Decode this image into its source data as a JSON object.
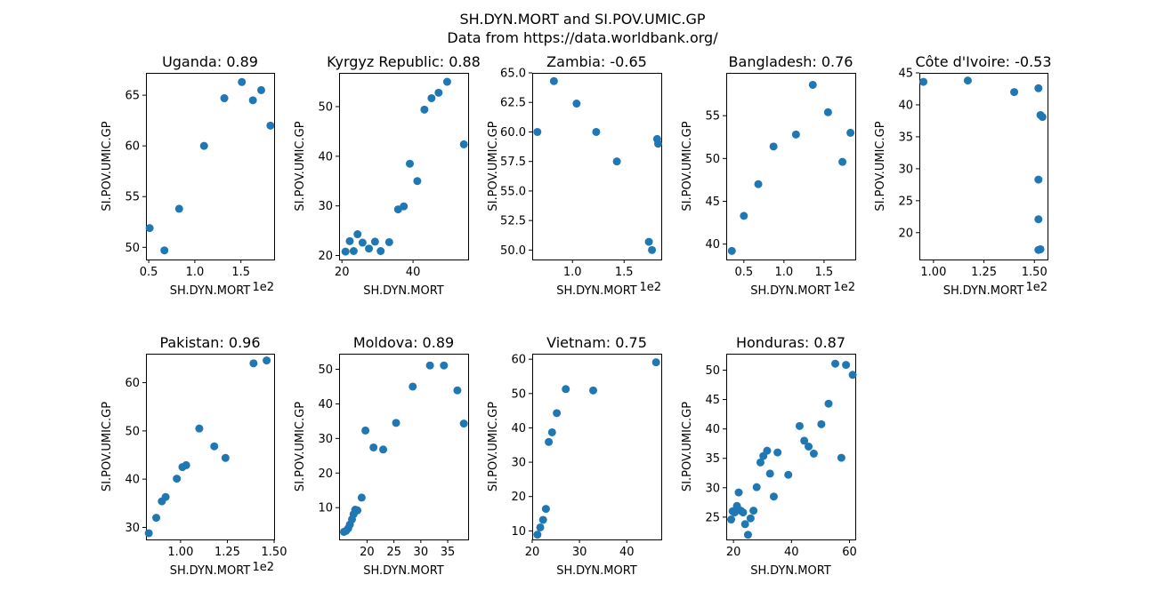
{
  "suptitle": {
    "line1": "SH.DYN.MORT and SI.POV.UMIC.GP",
    "line2": "Data from https://data.worldbank.org/"
  },
  "point_color": "#1f77b4",
  "chart_data": [
    {
      "type": "scatter",
      "title": "Uganda: 0.89",
      "xlabel": "SH.DYN.MORT",
      "ylabel": "SI.POV.UMIC.GP",
      "x_offset_label": "1e2",
      "xlim": [
        0.47,
        1.86
      ],
      "ylim": [
        48.8,
        67.2
      ],
      "xticks": [
        {
          "v": 0.5,
          "label": "0.5"
        },
        {
          "v": 1.0,
          "label": "1.0"
        },
        {
          "v": 1.5,
          "label": "1.5"
        }
      ],
      "yticks": [
        {
          "v": 50,
          "label": "50"
        },
        {
          "v": 55,
          "label": "55"
        },
        {
          "v": 60,
          "label": "60"
        },
        {
          "v": 65,
          "label": "65"
        }
      ],
      "x": [
        0.51,
        0.67,
        0.83,
        1.1,
        1.32,
        1.51,
        1.63,
        1.72,
        1.82
      ],
      "y": [
        51.9,
        49.7,
        53.8,
        60.0,
        64.7,
        66.3,
        64.5,
        65.5,
        62.0
      ]
    },
    {
      "type": "scatter",
      "title": "Kyrgyz Republic: 0.88",
      "xlabel": "SH.DYN.MORT",
      "ylabel": "SI.POV.UMIC.GP",
      "x_offset_label": "",
      "xlim": [
        19.2,
        55.5
      ],
      "ylim": [
        19.2,
        56.8
      ],
      "xticks": [
        {
          "v": 20,
          "label": "20"
        },
        {
          "v": 40,
          "label": "40"
        }
      ],
      "yticks": [
        {
          "v": 20,
          "label": "20"
        },
        {
          "v": 30,
          "label": "30"
        },
        {
          "v": 40,
          "label": "40"
        },
        {
          "v": 50,
          "label": "50"
        }
      ],
      "x": [
        21.0,
        22.2,
        23.3,
        24.4,
        25.8,
        27.6,
        29.3,
        30.9,
        33.3,
        35.8,
        37.4,
        39.1,
        41.2,
        43.2,
        45.2,
        47.2,
        49.6,
        54.3
      ],
      "y": [
        20.8,
        22.9,
        20.9,
        24.3,
        22.6,
        21.4,
        22.8,
        20.9,
        22.7,
        29.3,
        29.9,
        38.5,
        35.0,
        49.4,
        51.7,
        52.8,
        55.0,
        42.4
      ]
    },
    {
      "type": "scatter",
      "title": "Zambia: -0.65",
      "xlabel": "SH.DYN.MORT",
      "ylabel": "SI.POV.UMIC.GP",
      "x_offset_label": "1e2",
      "xlim": [
        0.61,
        1.86
      ],
      "ylim": [
        49.2,
        65.0
      ],
      "xticks": [
        {
          "v": 1.0,
          "label": "1.0"
        },
        {
          "v": 1.5,
          "label": "1.5"
        }
      ],
      "yticks": [
        {
          "v": 50.0,
          "label": "50.0"
        },
        {
          "v": 52.5,
          "label": "52.5"
        },
        {
          "v": 55.0,
          "label": "55.0"
        },
        {
          "v": 57.5,
          "label": "57.5"
        },
        {
          "v": 60.0,
          "label": "60.0"
        },
        {
          "v": 62.5,
          "label": "62.5"
        },
        {
          "v": 65.0,
          "label": "65.0"
        }
      ],
      "x": [
        0.66,
        0.82,
        1.04,
        1.23,
        1.43,
        1.74,
        1.77,
        1.82,
        1.83
      ],
      "y": [
        60.0,
        64.3,
        62.4,
        60.0,
        57.5,
        50.7,
        50.0,
        59.4,
        59.0
      ]
    },
    {
      "type": "scatter",
      "title": "Bangladesh: 0.76",
      "xlabel": "SH.DYN.MORT",
      "ylabel": "SI.POV.UMIC.GP",
      "x_offset_label": "1e2",
      "xlim": [
        0.28,
        1.89
      ],
      "ylim": [
        38.2,
        60.0
      ],
      "xticks": [
        {
          "v": 0.5,
          "label": "0.5"
        },
        {
          "v": 1.0,
          "label": "1.0"
        },
        {
          "v": 1.5,
          "label": "1.5"
        }
      ],
      "yticks": [
        {
          "v": 40,
          "label": "40"
        },
        {
          "v": 45,
          "label": "45"
        },
        {
          "v": 50,
          "label": "50"
        },
        {
          "v": 55,
          "label": "55"
        }
      ],
      "x": [
        0.35,
        0.5,
        0.68,
        0.87,
        1.15,
        1.36,
        1.55,
        1.73,
        1.83
      ],
      "y": [
        39.2,
        43.3,
        47.0,
        51.4,
        52.8,
        58.6,
        55.4,
        49.6,
        53.0
      ]
    },
    {
      "type": "scatter",
      "title": "Côte d'Ivoire: -0.53",
      "xlabel": "SH.DYN.MORT",
      "ylabel": "SI.POV.UMIC.GP",
      "x_offset_label": "1e2",
      "xlim": [
        0.93,
        1.565
      ],
      "ylim": [
        15.8,
        45.0
      ],
      "xticks": [
        {
          "v": 1.0,
          "label": "1.00"
        },
        {
          "v": 1.25,
          "label": "1.25"
        },
        {
          "v": 1.5,
          "label": "1.50"
        }
      ],
      "yticks": [
        {
          "v": 20,
          "label": "20"
        },
        {
          "v": 25,
          "label": "25"
        },
        {
          "v": 30,
          "label": "30"
        },
        {
          "v": 35,
          "label": "35"
        },
        {
          "v": 40,
          "label": "40"
        },
        {
          "v": 45,
          "label": "45"
        }
      ],
      "x": [
        0.95,
        1.17,
        1.4,
        1.52,
        1.52,
        1.52,
        1.52,
        1.53,
        1.53,
        1.54
      ],
      "y": [
        43.6,
        43.8,
        42.0,
        42.6,
        28.3,
        22.1,
        17.3,
        17.4,
        38.4,
        38.1
      ]
    },
    {
      "type": "scatter",
      "title": "Pakistan: 0.96",
      "xlabel": "SH.DYN.MORT",
      "ylabel": "SI.POV.UMIC.GP",
      "x_offset_label": "1e2",
      "xlim": [
        0.815,
        1.5
      ],
      "ylim": [
        27.5,
        66.0
      ],
      "xticks": [
        {
          "v": 1.0,
          "label": "1.00"
        },
        {
          "v": 1.25,
          "label": "1.25"
        },
        {
          "v": 1.5,
          "label": "1.50"
        }
      ],
      "yticks": [
        {
          "v": 30,
          "label": "30"
        },
        {
          "v": 40,
          "label": "40"
        },
        {
          "v": 50,
          "label": "50"
        },
        {
          "v": 60,
          "label": "60"
        }
      ],
      "x": [
        0.83,
        0.87,
        0.9,
        0.92,
        0.98,
        1.01,
        1.03,
        1.1,
        1.18,
        1.24,
        1.39,
        1.46
      ],
      "y": [
        28.8,
        32.0,
        35.4,
        36.3,
        40.1,
        42.5,
        42.9,
        50.5,
        46.8,
        44.4,
        64.0,
        64.6
      ]
    },
    {
      "type": "scatter",
      "title": "Moldova: 0.89",
      "xlabel": "SH.DYN.MORT",
      "ylabel": "SI.POV.UMIC.GP",
      "x_offset_label": "",
      "xlim": [
        14.8,
        38.8
      ],
      "ylim": [
        0.8,
        54.5
      ],
      "xticks": [
        {
          "v": 20,
          "label": "20"
        },
        {
          "v": 25,
          "label": "25"
        },
        {
          "v": 30,
          "label": "30"
        },
        {
          "v": 35,
          "label": "35"
        }
      ],
      "yticks": [
        {
          "v": 10,
          "label": "10"
        },
        {
          "v": 20,
          "label": "20"
        },
        {
          "v": 30,
          "label": "30"
        },
        {
          "v": 40,
          "label": "40"
        },
        {
          "v": 50,
          "label": "50"
        }
      ],
      "x": [
        15.7,
        16.1,
        16.5,
        16.8,
        17.2,
        17.5,
        17.8,
        18.2,
        19.0,
        19.7,
        21.2,
        23.0,
        25.4,
        28.5,
        31.7,
        34.3,
        36.8,
        38.0
      ],
      "y": [
        3.0,
        3.3,
        4.0,
        5.1,
        6.6,
        8.1,
        9.4,
        9.2,
        12.9,
        32.3,
        27.4,
        26.8,
        34.5,
        45.0,
        51.1,
        51.1,
        43.9,
        34.3
      ]
    },
    {
      "type": "scatter",
      "title": "Vietnam: 0.75",
      "xlabel": "SH.DYN.MORT",
      "ylabel": "SI.POV.UMIC.GP",
      "x_offset_label": "",
      "xlim": [
        20.0,
        47.3
      ],
      "ylim": [
        7.5,
        61.6
      ],
      "xticks": [
        {
          "v": 20,
          "label": "20"
        },
        {
          "v": 30,
          "label": "30"
        },
        {
          "v": 40,
          "label": "40"
        }
      ],
      "yticks": [
        {
          "v": 10,
          "label": "10"
        },
        {
          "v": 20,
          "label": "20"
        },
        {
          "v": 30,
          "label": "30"
        },
        {
          "v": 40,
          "label": "40"
        },
        {
          "v": 50,
          "label": "50"
        },
        {
          "v": 60,
          "label": "60"
        }
      ],
      "x": [
        21.1,
        21.7,
        22.3,
        22.9,
        23.5,
        24.2,
        25.2,
        27.1,
        32.9,
        46.2
      ],
      "y": [
        8.9,
        11.0,
        13.2,
        16.4,
        35.9,
        38.7,
        44.3,
        51.3,
        50.9,
        59.1
      ]
    },
    {
      "type": "scatter",
      "title": "Honduras: 0.87",
      "xlabel": "SH.DYN.MORT",
      "ylabel": "SI.POV.UMIC.GP",
      "x_offset_label": "",
      "xlim": [
        17.5,
        62.0
      ],
      "ylim": [
        21.2,
        52.8
      ],
      "xticks": [
        {
          "v": 20,
          "label": "20"
        },
        {
          "v": 40,
          "label": "40"
        },
        {
          "v": 60,
          "label": "60"
        }
      ],
      "yticks": [
        {
          "v": 25,
          "label": "25"
        },
        {
          "v": 30,
          "label": "30"
        },
        {
          "v": 35,
          "label": "35"
        },
        {
          "v": 40,
          "label": "40"
        },
        {
          "v": 45,
          "label": "45"
        },
        {
          "v": 50,
          "label": "50"
        }
      ],
      "x": [
        19.2,
        19.7,
        20.4,
        21.2,
        21.8,
        22.5,
        23.3,
        24.0,
        25.0,
        25.9,
        26.9,
        28.0,
        29.3,
        30.3,
        31.6,
        32.6,
        33.9,
        35.2,
        38.9,
        42.8,
        44.4,
        45.9,
        47.7,
        50.3,
        52.8,
        55.1,
        57.2,
        58.8,
        61.1
      ],
      "y": [
        24.6,
        26.0,
        25.8,
        26.9,
        29.2,
        26.1,
        25.8,
        23.8,
        22.0,
        24.8,
        26.1,
        30.1,
        34.3,
        35.4,
        36.3,
        32.4,
        28.5,
        36.0,
        32.2,
        40.5,
        38.0,
        37.0,
        35.8,
        40.8,
        44.3,
        51.1,
        35.1,
        50.9,
        49.2
      ]
    }
  ]
}
